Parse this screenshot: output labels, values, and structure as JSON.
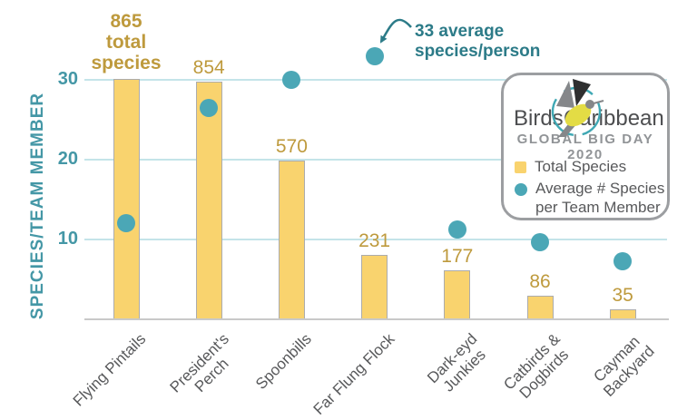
{
  "colors": {
    "bar_fill": "#F9D36E",
    "bar_stroke": "#ACACAC",
    "dot_teal": "#4BA7B6",
    "axis_teal": "#4497A6",
    "gold": "#BE9A3D",
    "annotation_teal": "#2C7B88",
    "gridline": "#C4E4E9",
    "baseline_gray": "#C9C9C9",
    "label_gray": "#58595B",
    "logo_text_gray": "#4D4E50",
    "subtitle_gray": "#919497",
    "legend_border_gray": "#9C9EA1",
    "logo_yellow": "#E3DC45",
    "logo_wing_gray": "#85878A",
    "logo_wing_black": "#2F2F30",
    "logo_ring_teal": "#3FA8B4"
  },
  "annotation": {
    "line1": "33 average",
    "line2": "species/person"
  },
  "legend": {
    "brand_left": "Birds",
    "brand_right": "Caribbean",
    "subtitle": "GLOBAL BIG DAY 2020",
    "items": [
      {
        "marker": "square",
        "label": "Total Species"
      },
      {
        "marker": "circle",
        "label": "Average # Species",
        "label_line2": "per Team Member"
      }
    ]
  },
  "chart_data": {
    "type": "combo-bar-scatter",
    "categories": [
      "Flying Pintails",
      "President's Perch",
      "Spoonbills",
      "Far Flung Flock",
      "Dark-eyd Junkies",
      "Catbirds & Dogbirds",
      "Cayman Backyard"
    ],
    "category_label_lines": [
      [
        "Flying Pintails"
      ],
      [
        "President's",
        "Perch"
      ],
      [
        "Spoonbills"
      ],
      [
        "Far Flung Flock"
      ],
      [
        "Dark-eyd",
        "Junkies"
      ],
      [
        "Catbirds &",
        "Dogbirds"
      ],
      [
        "Cayman",
        "Backyard"
      ]
    ],
    "series": [
      {
        "name": "Total Species",
        "type": "bar",
        "values": [
          865,
          854,
          570,
          231,
          177,
          86,
          35
        ]
      },
      {
        "name": "Average # Species per Team Member",
        "type": "scatter",
        "values": [
          12,
          26.5,
          30,
          33,
          11.3,
          9.7,
          7.3
        ]
      }
    ],
    "bar_value_labels": [
      "865",
      "854",
      "570",
      "231",
      "177",
      "86",
      "35"
    ],
    "first_bar_label_lines": [
      "865",
      "total",
      "species"
    ],
    "ylabel": "SPECIES/TEAM MEMBER",
    "yticks": [
      10,
      20,
      30
    ],
    "ylim": [
      0,
      35
    ],
    "grid": "horizontal gridlines at yticks",
    "legend_position": "upper right",
    "bar_scale_note": "bar heights drawn so 865 total species spans ~30 units of the species/team-member axis"
  }
}
